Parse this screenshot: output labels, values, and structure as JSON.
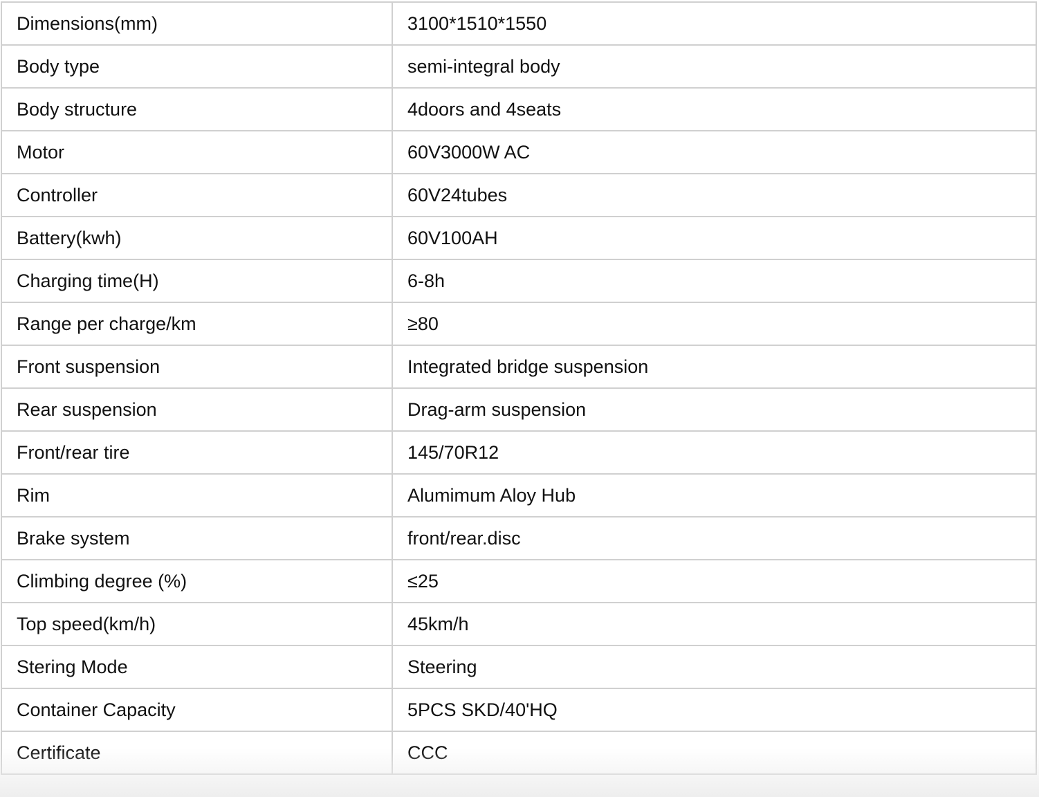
{
  "specs": [
    {
      "label": "Dimensions(mm)",
      "value": "3100*1510*1550"
    },
    {
      "label": "Body type",
      "value": "semi-integral body"
    },
    {
      "label": "Body structure",
      "value": "4doors and 4seats"
    },
    {
      "label": "Motor",
      "value": "60V3000W AC"
    },
    {
      "label": "Controller",
      "value": "60V24tubes"
    },
    {
      "label": "Battery(kwh)",
      "value": "60V100AH"
    },
    {
      "label": "Charging time(H)",
      "value": "6-8h"
    },
    {
      "label": "Range per charge/km",
      "value": "≥80"
    },
    {
      "label": "Front suspension",
      "value": "Integrated bridge suspension"
    },
    {
      "label": "Rear suspension",
      "value": "Drag-arm suspension"
    },
    {
      "label": "Front/rear tire",
      "value": "145/70R12"
    },
    {
      "label": "Rim",
      "value": "Alumimum Aloy Hub"
    },
    {
      "label": "Brake system",
      "value": "front/rear.disc"
    },
    {
      "label": "Climbing degree (%)",
      "value": "≤25"
    },
    {
      "label": "Top speed(km/h)",
      "value": "45km/h"
    },
    {
      "label": "Stering Mode",
      "value": "Steering"
    },
    {
      "label": "Container Capacity",
      "value": "5PCS SKD/40'HQ"
    },
    {
      "label": "Certificate",
      "value": "CCC"
    }
  ]
}
